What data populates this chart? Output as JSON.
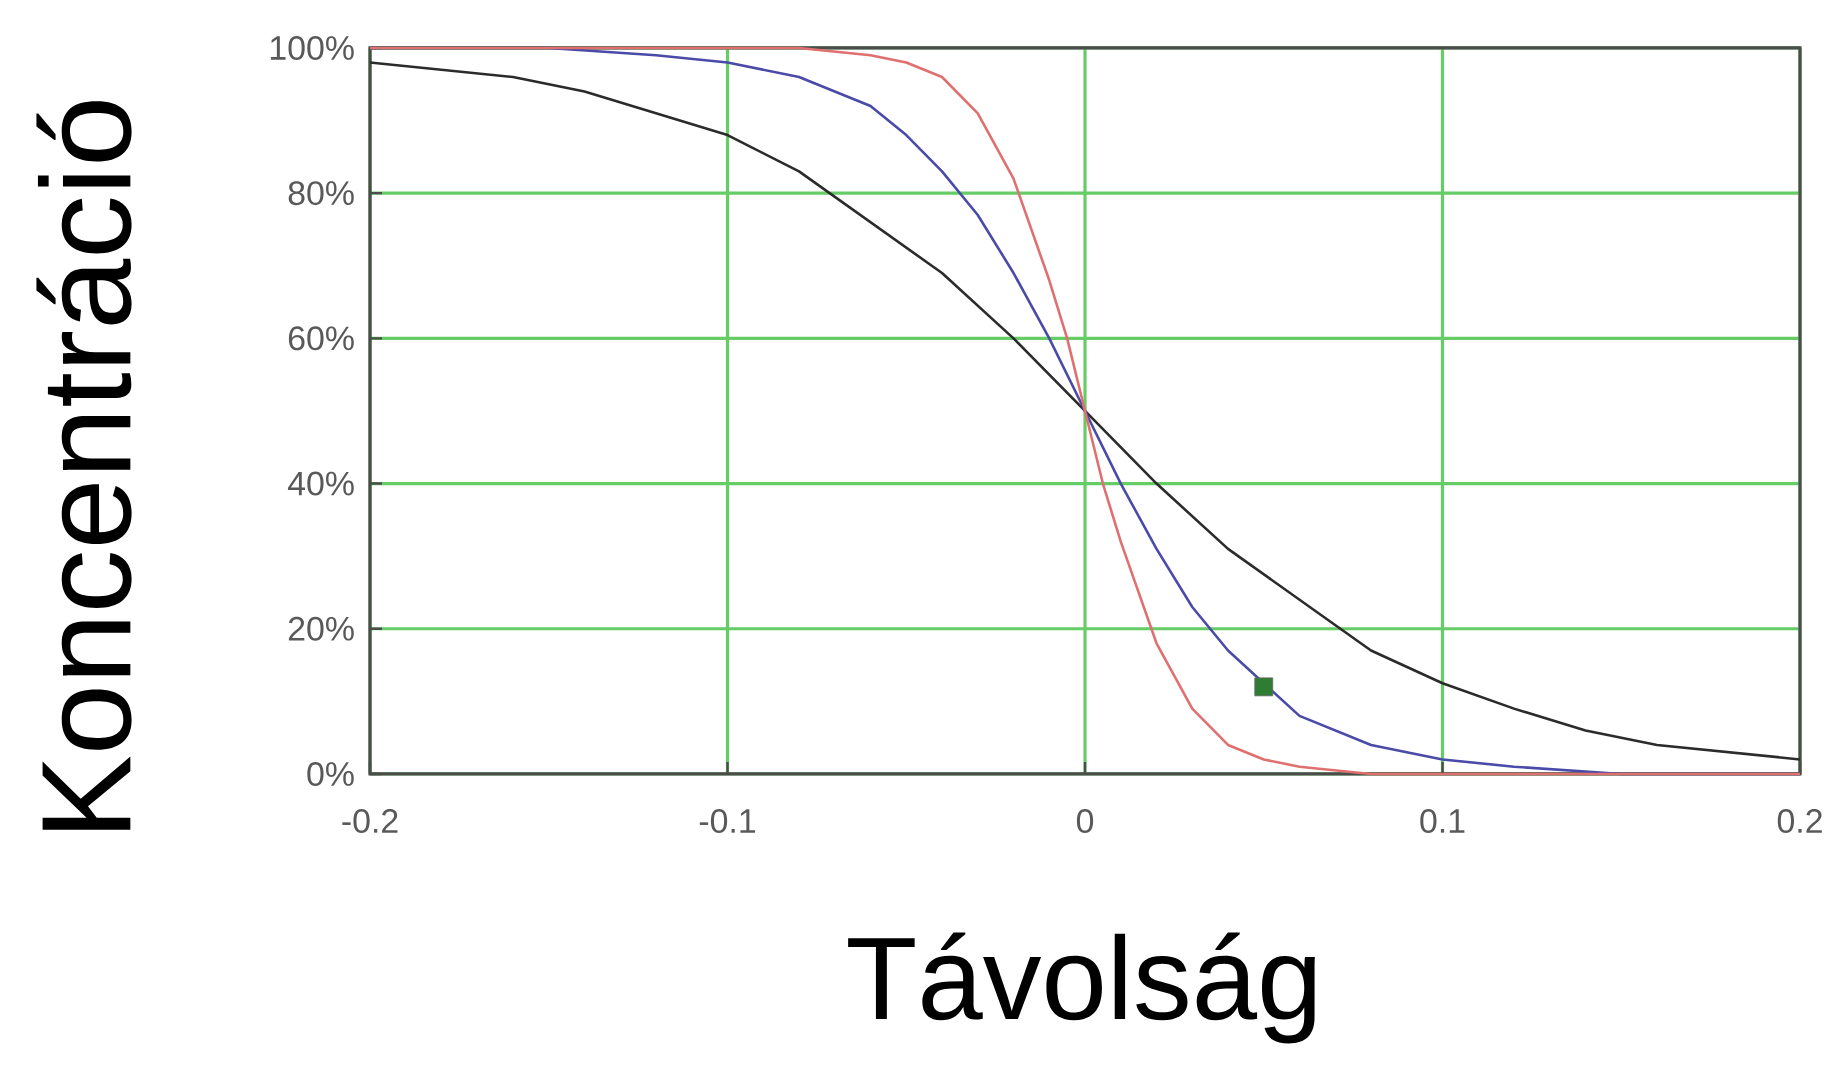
{
  "chart_data": {
    "type": "line",
    "xlabel": "Távolság",
    "ylabel": "Koncentráció",
    "xlim": [
      -0.2,
      0.2
    ],
    "ylim": [
      0,
      100
    ],
    "xticks": [
      -0.2,
      -0.1,
      0,
      0.1,
      0.2
    ],
    "yticks": [
      {
        "value": 0,
        "label": "0%"
      },
      {
        "value": 20,
        "label": "20%"
      },
      {
        "value": 40,
        "label": "40%"
      },
      {
        "value": 60,
        "label": "60%"
      },
      {
        "value": 80,
        "label": "80%"
      },
      {
        "value": 100,
        "label": "100%"
      }
    ],
    "grid": true,
    "marker": "none",
    "series": [
      {
        "color": "#2b2b2b",
        "x": [
          -0.2,
          -0.18,
          -0.16,
          -0.14,
          -0.12,
          -0.1,
          -0.08,
          -0.06,
          -0.04,
          -0.02,
          0,
          0.02,
          0.04,
          0.06,
          0.08,
          0.1,
          0.12,
          0.14,
          0.16,
          0.18,
          0.2
        ],
        "values": [
          98,
          97,
          96,
          94,
          91,
          88,
          83,
          76,
          69,
          60,
          50,
          40,
          31,
          24,
          17,
          12.5,
          9,
          6,
          4,
          3,
          2
        ]
      },
      {
        "color": "#4a4aa8",
        "x": [
          -0.2,
          -0.15,
          -0.12,
          -0.1,
          -0.08,
          -0.06,
          -0.05,
          -0.04,
          -0.03,
          -0.02,
          -0.01,
          0,
          0.01,
          0.02,
          0.03,
          0.04,
          0.06,
          0.08,
          0.1,
          0.12,
          0.15,
          0.2
        ],
        "values": [
          100,
          100,
          99,
          98,
          96,
          92,
          88,
          83,
          77,
          69,
          60,
          50,
          40,
          31,
          23,
          17,
          8,
          4,
          2,
          1,
          0,
          0
        ]
      },
      {
        "color": "#e07070",
        "x": [
          -0.2,
          -0.1,
          -0.08,
          -0.06,
          -0.05,
          -0.04,
          -0.03,
          -0.02,
          -0.01,
          -0.005,
          0,
          0.005,
          0.01,
          0.02,
          0.03,
          0.04,
          0.05,
          0.06,
          0.08,
          0.1,
          0.2
        ],
        "values": [
          100,
          100,
          100,
          99,
          98,
          96,
          91,
          82,
          68,
          60,
          50,
          40,
          32,
          18,
          9,
          4,
          2,
          1,
          0,
          0,
          0
        ]
      },
      {
        "type": "scatter",
        "marker": "square",
        "color": "#2e7d32",
        "x": [
          0.05
        ],
        "values": [
          12
        ]
      }
    ]
  }
}
